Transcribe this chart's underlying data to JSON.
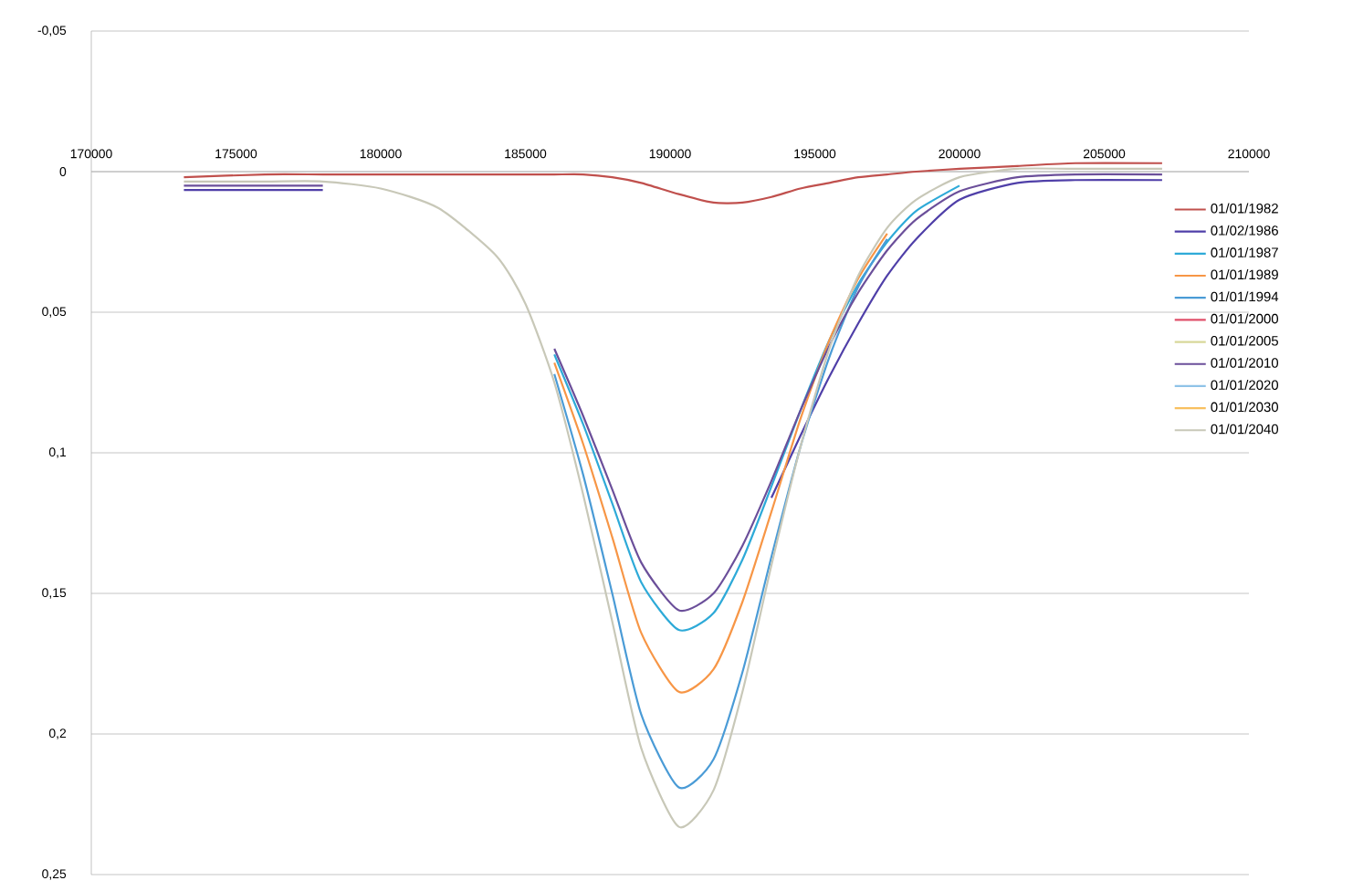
{
  "chart_data": {
    "type": "line",
    "xlim": [
      170000,
      210000
    ],
    "ylim": [
      0.25,
      -0.05
    ],
    "xticks": [
      170000,
      175000,
      180000,
      185000,
      190000,
      195000,
      200000,
      205000,
      210000
    ],
    "yticks": [
      {
        "value": -0.05,
        "label": "-0,05"
      },
      {
        "value": 0,
        "label": "0"
      },
      {
        "value": 0.05,
        "label": "0,05"
      },
      {
        "value": 0.1,
        "label": "0,1"
      },
      {
        "value": 0.15,
        "label": "0,15"
      },
      {
        "value": 0.2,
        "label": "0,2"
      },
      {
        "value": 0.25,
        "label": "0,25"
      }
    ],
    "grid": "y",
    "legend": "right",
    "x": [
      173200,
      176000,
      178000,
      180000,
      182000,
      184000,
      185000,
      186000,
      187000,
      188000,
      189000,
      190300,
      191500,
      192500,
      193500,
      194500,
      195500,
      196500,
      197500,
      198500,
      200000,
      202000,
      204000,
      207000
    ],
    "series": [
      {
        "name": "01/01/1982",
        "color": "#c0504d",
        "values": [
          0.002,
          0.001,
          0.001,
          0.001,
          0.001,
          0.001,
          0.001,
          0.001,
          0.001,
          0.002,
          0.004,
          0.008,
          0.011,
          0.011,
          0.009,
          0.006,
          0.004,
          0.002,
          0.001,
          0.0,
          -0.001,
          -0.002,
          -0.003,
          -0.003
        ]
      },
      {
        "name": "01/02/1986",
        "color": "#4f3fa8",
        "values": [
          0.0065,
          0.0065,
          0.0065,
          null,
          null,
          null,
          null,
          null,
          null,
          null,
          null,
          null,
          null,
          null,
          0.116,
          0.094,
          0.073,
          0.054,
          0.037,
          0.024,
          0.01,
          0.004,
          0.003,
          0.003
        ]
      },
      {
        "name": "01/01/1987",
        "color": "#2eaad8",
        "values": [
          null,
          null,
          null,
          null,
          null,
          null,
          null,
          0.065,
          0.09,
          0.118,
          0.146,
          0.163,
          0.157,
          0.138,
          0.112,
          0.085,
          0.06,
          0.04,
          0.025,
          0.014,
          0.005,
          null,
          null,
          null
        ]
      },
      {
        "name": "01/01/1989",
        "color": "#f79646",
        "values": [
          null,
          null,
          null,
          null,
          null,
          null,
          null,
          0.068,
          0.097,
          0.13,
          0.164,
          0.185,
          0.177,
          0.153,
          0.121,
          0.088,
          0.06,
          0.038,
          0.022,
          null,
          null,
          null,
          null,
          null
        ]
      },
      {
        "name": "01/01/1994",
        "color": "#4a9bd6",
        "values": [
          null,
          null,
          null,
          null,
          null,
          null,
          null,
          0.072,
          0.108,
          0.15,
          0.193,
          0.219,
          0.209,
          0.178,
          0.137,
          0.098,
          0.066,
          0.041,
          0.024,
          null,
          null,
          null,
          null,
          null
        ]
      },
      {
        "name": "01/01/2000",
        "color": "#e0506a",
        "values": [
          null,
          null,
          null,
          null,
          null,
          null,
          null,
          null,
          null,
          null,
          null,
          null,
          null,
          null,
          null,
          null,
          null,
          null,
          null,
          null,
          null,
          null,
          null,
          null
        ]
      },
      {
        "name": "01/01/2005",
        "color": "#d8d89a",
        "values": [
          null,
          null,
          null,
          null,
          null,
          null,
          null,
          null,
          null,
          null,
          null,
          null,
          null,
          null,
          null,
          null,
          null,
          null,
          null,
          null,
          null,
          null,
          null,
          null
        ]
      },
      {
        "name": "01/01/2010",
        "color": "#6b4f9a",
        "values": [
          0.005,
          0.005,
          0.005,
          null,
          null,
          null,
          null,
          0.063,
          0.087,
          0.113,
          0.139,
          0.156,
          0.15,
          0.133,
          0.11,
          0.085,
          0.062,
          0.043,
          0.028,
          0.017,
          0.007,
          0.002,
          0.001,
          0.001
        ]
      },
      {
        "name": "01/01/2020",
        "color": "#8fc3e8",
        "values": [
          null,
          null,
          null,
          null,
          null,
          null,
          null,
          null,
          null,
          null,
          null,
          null,
          null,
          null,
          null,
          null,
          null,
          null,
          null,
          null,
          null,
          null,
          null,
          null
        ]
      },
      {
        "name": "01/01/2030",
        "color": "#f8c060",
        "values": [
          null,
          null,
          null,
          null,
          null,
          null,
          null,
          null,
          null,
          null,
          null,
          null,
          null,
          null,
          null,
          null,
          null,
          null,
          null,
          null,
          null,
          null,
          null,
          null
        ]
      },
      {
        "name": "01/01/2040",
        "color": "#c8c8b8",
        "values": [
          0.0035,
          0.0035,
          0.0035,
          0.006,
          0.013,
          0.03,
          0.047,
          0.075,
          0.115,
          0.16,
          0.205,
          0.233,
          0.22,
          0.185,
          0.14,
          0.098,
          0.063,
          0.037,
          0.02,
          0.01,
          0.002,
          -0.001,
          -0.001,
          -0.001
        ]
      }
    ]
  }
}
